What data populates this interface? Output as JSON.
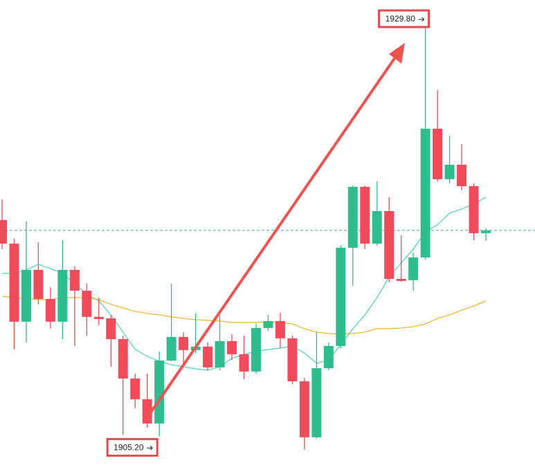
{
  "chart_data": {
    "type": "candlestick",
    "categories": [
      null,
      null,
      null,
      null,
      null,
      null,
      null,
      null,
      null,
      null,
      null,
      null,
      null,
      null,
      null,
      null,
      null,
      null,
      null,
      null,
      null,
      null,
      null,
      null,
      null,
      null,
      null,
      null,
      null,
      null,
      null,
      null,
      null,
      null,
      null,
      null,
      null,
      null,
      null,
      null,
      null
    ],
    "open": [
      1918.22,
      1916.8,
      1912.1,
      1915.22,
      1913.47,
      1912.1,
      1915.22,
      1913.97,
      1912.39,
      1912.3,
      1911.05,
      1908.68,
      1907.43,
      1905.97,
      1909.76,
      1911.18,
      1910.39,
      1910.6,
      1909.35,
      1910.93,
      1910.14,
      1909.1,
      1911.72,
      1912.14,
      1911.1,
      1908.51,
      1905.14,
      1909.3,
      1910.64,
      1916.55,
      1920.22,
      1916.8,
      1918.76,
      1914.68,
      1914.6,
      1915.97,
      1923.72,
      1920.68,
      1921.55,
      1920.26,
      1917.43
    ],
    "high": [
      1919.47,
      1917.1,
      1918.14,
      1916.89,
      1914.18,
      1917.01,
      1915.43,
      1914.39,
      1913.55,
      1912.51,
      1911.26,
      1908.97,
      1908.97,
      1910.3,
      1914.39,
      1911.47,
      1912.6,
      1910.85,
      1912.51,
      1911.35,
      1911.26,
      1911.97,
      1912.51,
      1912.64,
      1911.26,
      1908.72,
      1911.47,
      1910.85,
      1916.68,
      1920.3,
      1920.3,
      1920.55,
      1919.6,
      1917.3,
      1916.26,
      1929.8,
      1926.05,
      1923.3,
      1922.8,
      1920.43,
      1917.72
    ],
    "low": [
      1916.47,
      1910.43,
      1910.85,
      1913.14,
      1911.68,
      1911.05,
      1910.64,
      1911.26,
      1911.89,
      1909.39,
      1905.3,
      1906.89,
      1905.72,
      1905.2,
      1909.72,
      1909.39,
      1910.22,
      1909.18,
      1909.18,
      1909.8,
      1908.64,
      1908.97,
      1911.55,
      1910.51,
      1908.35,
      1904.39,
      1905.05,
      1909.18,
      1910.51,
      1914.26,
      1916.47,
      1916.68,
      1914.47,
      1914.51,
      1913.97,
      1915.85,
      1920.55,
      1920.43,
      1920.01,
      1917.01,
      1916.97
    ],
    "close": [
      1916.8,
      1912.1,
      1915.22,
      1913.47,
      1912.1,
      1915.22,
      1913.97,
      1912.39,
      1912.26,
      1911.05,
      1908.68,
      1907.43,
      1905.97,
      1909.76,
      1911.18,
      1910.39,
      1910.6,
      1909.35,
      1910.93,
      1910.14,
      1909.1,
      1911.72,
      1912.14,
      1911.1,
      1908.51,
      1905.14,
      1909.3,
      1910.64,
      1916.55,
      1920.22,
      1916.8,
      1918.76,
      1914.68,
      1914.6,
      1915.97,
      1923.72,
      1920.68,
      1921.55,
      1920.26,
      1917.43,
      1917.6
    ],
    "up_color": "#2dbd8e",
    "down_color": "#ef4b5a",
    "moving_averages": [
      {
        "color": "#4fd1b4",
        "values": [
          1915.01,
          1915.01,
          1915.22,
          1915.55,
          1915.3,
          1915.01,
          1914.39,
          1913.76,
          1913.35,
          1912.51,
          1911.47,
          1910.43,
          1910.01,
          1909.72,
          1909.51,
          1909.39,
          1909.26,
          1909.18,
          1909.39,
          1909.89,
          1910.14,
          1910.3,
          1910.43,
          1910.51,
          1910.64,
          1910.22,
          1909.6,
          1909.8,
          1910.72,
          1911.68,
          1912.51,
          1913.55,
          1914.8,
          1915.64,
          1916.47,
          1917.51,
          1917.93,
          1918.64,
          1918.89,
          1919.18,
          1919.6
        ]
      },
      {
        "color": "#f0b323",
        "values": [
          1913.64,
          1913.55,
          1913.47,
          1913.43,
          1913.43,
          1913.55,
          1913.55,
          1913.55,
          1913.43,
          1913.14,
          1912.93,
          1912.72,
          1912.6,
          1912.51,
          1912.39,
          1912.3,
          1912.22,
          1912.18,
          1912.14,
          1912.05,
          1912.05,
          1912.05,
          1912.1,
          1912.05,
          1911.97,
          1911.68,
          1911.47,
          1911.39,
          1911.35,
          1911.39,
          1911.47,
          1911.68,
          1911.68,
          1911.72,
          1911.8,
          1911.97,
          1912.3,
          1912.51,
          1912.8,
          1913.05,
          1913.35
        ]
      }
    ],
    "price_line": {
      "value": 1917.6,
      "color": "#4aa3a0"
    },
    "ylim": [
      1903.05,
      1931.47
    ],
    "annotations": [
      {
        "text": "1929.80",
        "value": 1929.8,
        "index": 35
      },
      {
        "text": "1905.20",
        "value": 1905.2,
        "index": 13
      }
    ]
  }
}
